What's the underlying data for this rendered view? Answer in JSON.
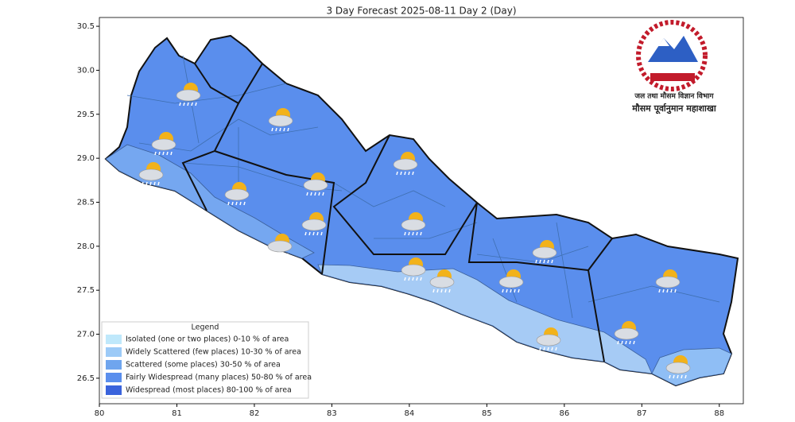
{
  "map": {
    "title": "3 Day Forecast 2025-08-11 Day 2 (Day)",
    "xlim": [
      80,
      88.31
    ],
    "ylim": [
      26.21,
      30.6
    ],
    "xticks": [
      80,
      81,
      82,
      83,
      84,
      85,
      86,
      87,
      88
    ],
    "yticks": [
      {
        "value": 26.5,
        "label": "26.5"
      },
      {
        "value": 27,
        "label": "27.0"
      },
      {
        "value": 27.5,
        "label": "27.5"
      },
      {
        "value": 28,
        "label": "28.0"
      },
      {
        "value": 28.5,
        "label": "28.5"
      },
      {
        "value": 29,
        "label": "29.0"
      },
      {
        "value": 29.5,
        "label": "29.5"
      },
      {
        "value": 30,
        "label": "30.0"
      },
      {
        "value": 30.5,
        "label": "30.5"
      }
    ],
    "legend": {
      "title": "Legend",
      "items": [
        {
          "label": "Isolated (one or two places)  0-10 % of area",
          "color": "#bfe8fb"
        },
        {
          "label": "Widely Scattered (few places) 10-30 % of area",
          "color": "#9ccaf7"
        },
        {
          "label": "Scattered (some places) 30-50  % of area",
          "color": "#6fa5ee"
        },
        {
          "label": "Fairly Widespread (many places) 50-80 % of area",
          "color": "#5a8eed"
        },
        {
          "label": "Widespread (most places) 80-100 % of area",
          "color": "#3a63dc"
        }
      ]
    },
    "logo_text": [
      "जल तथा मौसम विज्ञान विभाग",
      "मौसम पूर्वानुमान महाशाखा"
    ]
  }
}
